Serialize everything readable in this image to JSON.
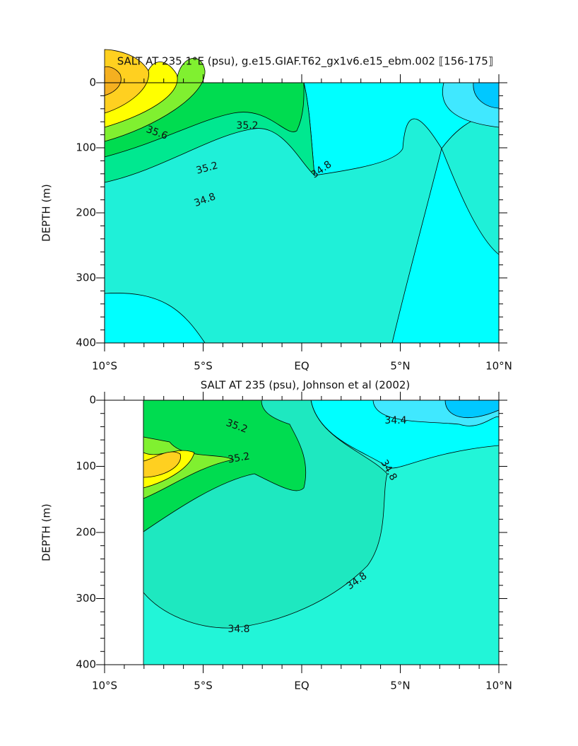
{
  "chart_data": [
    {
      "type": "contour",
      "title": "SALT AT 235.1°E (psu), g.e15.GIAF.T62_gx1v6.e15_ebm.002 ⟦156-175⟧",
      "ylabel": "DEPTH (m)",
      "xlim": [
        -10,
        10
      ],
      "xticks": [
        {
          "value": -10,
          "label": "10°S"
        },
        {
          "value": -5,
          "label": "5°S"
        },
        {
          "value": 0,
          "label": "EQ"
        },
        {
          "value": 5,
          "label": "5°N"
        },
        {
          "value": 10,
          "label": "10°N"
        }
      ],
      "ylim": [
        400,
        0
      ],
      "yticks": [
        0,
        100,
        200,
        300,
        400
      ],
      "contour_labels": [
        "35.6",
        "35.2",
        "35.2",
        "34.8",
        "34.8"
      ]
    },
    {
      "type": "contour",
      "title": "SALT AT 235 (psu), Johnson et al (2002)",
      "ylabel": "DEPTH (m)",
      "xlim": [
        -10,
        10
      ],
      "xticks": [
        {
          "value": -10,
          "label": "10°S"
        },
        {
          "value": -5,
          "label": "5°S"
        },
        {
          "value": 0,
          "label": "EQ"
        },
        {
          "value": 5,
          "label": "5°N"
        },
        {
          "value": 10,
          "label": "10°N"
        }
      ],
      "ylim": [
        400,
        0
      ],
      "yticks": [
        0,
        100,
        200,
        300,
        400
      ],
      "contour_labels": [
        "35.2",
        "35.2",
        "34.4",
        "34.8",
        "34.8",
        "34.8"
      ]
    }
  ]
}
